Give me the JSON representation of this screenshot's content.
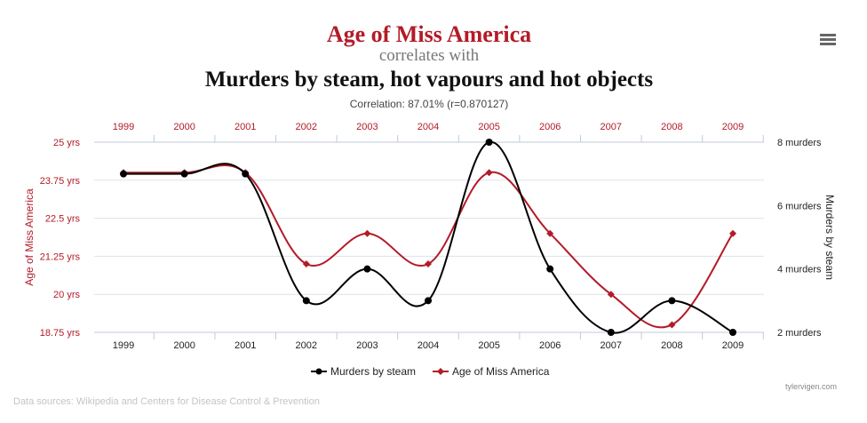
{
  "header": {
    "title_line1": "Age of Miss America",
    "title_line2": "correlates with",
    "title_line3": "Murders by steam, hot vapours and hot objects",
    "correlation": "Correlation: 87.01% (r=0.870127)"
  },
  "menu": {
    "icon": "menu-icon"
  },
  "footer": {
    "source": "Data sources: Wikipedia and Centers for Disease Control & Prevention",
    "credit": "tylervigen.com"
  },
  "colors": {
    "age": "#b31b27",
    "murders": "#000000",
    "grid": "#dde3ec"
  },
  "chart_data": {
    "type": "line",
    "x": [
      "1999",
      "2000",
      "2001",
      "2002",
      "2003",
      "2004",
      "2005",
      "2006",
      "2007",
      "2008",
      "2009"
    ],
    "series": [
      {
        "name": "Murders by steam",
        "axis": "right",
        "values": [
          7,
          7,
          7,
          3,
          4,
          3,
          8,
          4,
          2,
          3,
          2
        ]
      },
      {
        "name": "Age of Miss America",
        "axis": "left",
        "values": [
          24,
          24,
          24,
          21,
          22,
          21,
          24,
          22,
          20,
          19,
          22
        ]
      }
    ],
    "left_axis": {
      "label": "Age of Miss America",
      "ylim": [
        18.75,
        25
      ],
      "ticks": [
        25,
        23.75,
        22.5,
        21.25,
        20,
        18.75
      ],
      "tick_labels": [
        "25 yrs",
        "23.75 yrs",
        "22.5 yrs",
        "21.25 yrs",
        "20 yrs",
        "18.75 yrs"
      ]
    },
    "right_axis": {
      "label": "Murders by steam",
      "ylim": [
        2,
        8
      ],
      "ticks": [
        8,
        6,
        4,
        2
      ],
      "tick_labels": [
        "8 murders",
        "6 murders",
        "4 murders",
        "2 murders"
      ]
    },
    "legend": [
      {
        "name": "Murders by steam",
        "color": "#000000",
        "marker": "circle"
      },
      {
        "name": "Age of Miss America",
        "color": "#b31b27",
        "marker": "diamond"
      }
    ],
    "legend_position": "bottom-center"
  }
}
